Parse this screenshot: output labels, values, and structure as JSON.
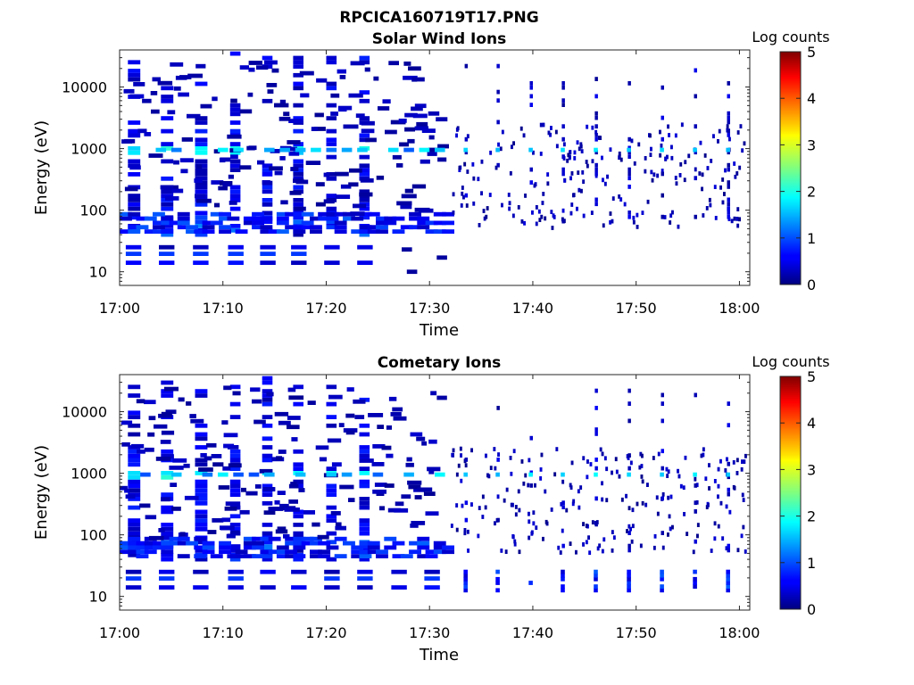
{
  "figure": {
    "title": "RPCICA160719T17.PNG"
  },
  "chart_data": [
    {
      "type": "heatmap",
      "title": "Solar Wind Ions",
      "xlabel": "Time",
      "ylabel": "Energy (eV)",
      "yscale": "log",
      "ylim": [
        6,
        40000
      ],
      "xlim": [
        "17:00",
        "18:01"
      ],
      "xticks": [
        "17:00",
        "17:10",
        "17:20",
        "17:30",
        "17:40",
        "17:50",
        "18:00"
      ],
      "yticks": [
        "10",
        "100",
        "1000",
        "10000"
      ],
      "colorbar": {
        "title": "Log counts",
        "range": [
          0,
          5
        ],
        "ticks": [
          "0",
          "1",
          "2",
          "3",
          "4",
          "5"
        ],
        "colormap": "jet"
      },
      "grid": false,
      "early_sweep_minutes": [
        1.3,
        4.5,
        7.8,
        11.2,
        14.3,
        17.3,
        20.5,
        23.7
      ],
      "early_low_band_minutes": [
        1.3,
        4.5,
        7.8,
        11.2,
        14.3,
        17.3,
        20.5,
        23.7
      ],
      "early_low_band_energy_ev": [
        14,
        25
      ],
      "dominant_band_energy_ev": 950,
      "low_energy_band_ev": [
        45,
        90
      ],
      "late_sparse_start_minute": 32,
      "late_columns_minutes": [
        33.5,
        36.6,
        39.8,
        42.9,
        46.1,
        49.3,
        52.5,
        55.7,
        58.9
      ],
      "extra_low_cells": [
        {
          "minute": 27.8,
          "energy": 10
        },
        {
          "minute": 30.7,
          "energy": 17
        },
        {
          "minute": 27.3,
          "energy": 23
        }
      ]
    },
    {
      "type": "heatmap",
      "title": "Cometary Ions",
      "xlabel": "Time",
      "ylabel": "Energy (eV)",
      "yscale": "log",
      "ylim": [
        6,
        40000
      ],
      "xlim": [
        "17:00",
        "18:01"
      ],
      "xticks": [
        "17:00",
        "17:10",
        "17:20",
        "17:30",
        "17:40",
        "17:50",
        "18:00"
      ],
      "yticks": [
        "10",
        "100",
        "1000",
        "10000"
      ],
      "colorbar": {
        "title": "Log counts",
        "range": [
          0,
          5
        ],
        "ticks": [
          "0",
          "1",
          "2",
          "3",
          "4",
          "5"
        ],
        "colormap": "jet"
      },
      "grid": false,
      "early_sweep_minutes": [
        1.3,
        4.5,
        7.8,
        11.2,
        14.3,
        17.3,
        20.5,
        23.7
      ],
      "early_low_band_minutes": [
        1.3,
        4.5,
        7.8,
        11.2,
        14.3,
        17.3,
        20.5,
        23.7,
        27.0,
        30.2
      ],
      "early_low_band_energy_ev": [
        14,
        25
      ],
      "dominant_band_energy_ev": 950,
      "low_energy_band_ev": [
        45,
        90
      ],
      "late_sparse_start_minute": 32,
      "late_columns_minutes": [
        33.5,
        36.6,
        39.8,
        42.9,
        46.1,
        49.3,
        52.5,
        55.7,
        58.9
      ],
      "late_low_band_minutes": [
        33.5,
        36.6,
        39.8,
        42.9,
        46.1,
        49.3,
        52.5,
        55.7,
        58.9
      ],
      "extra_low_cells": []
    }
  ]
}
